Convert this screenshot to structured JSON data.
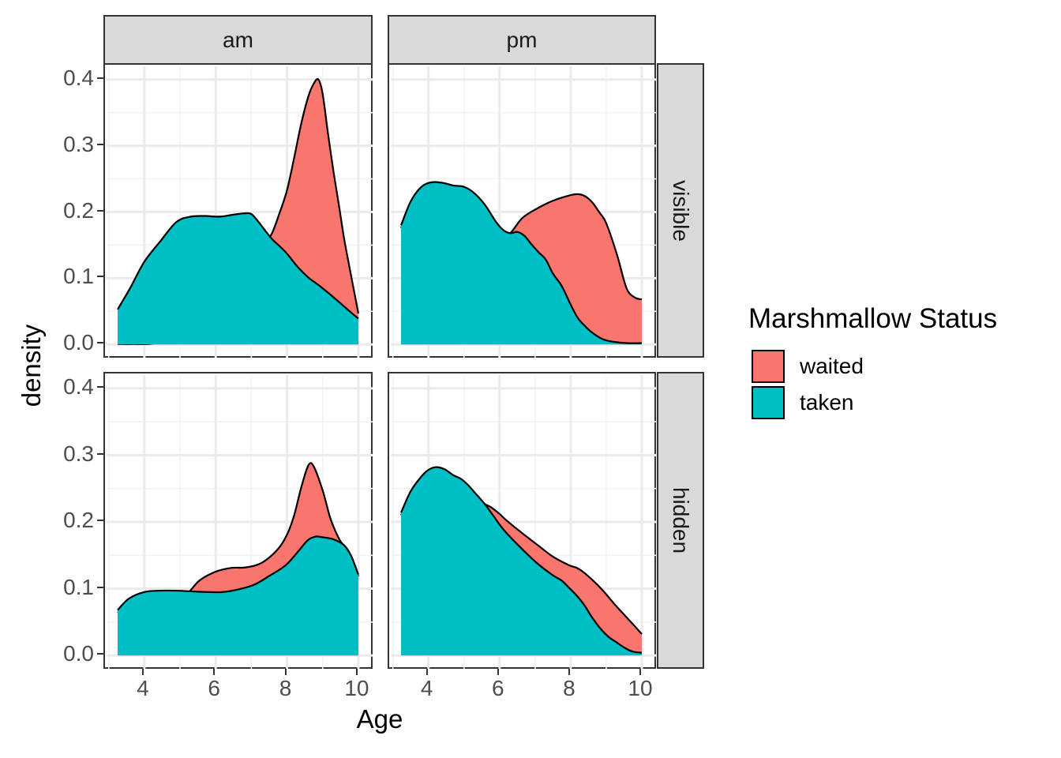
{
  "axes": {
    "x_title": "Age",
    "y_title": "density",
    "x_tick_labels": [
      "4",
      "6",
      "8",
      "10"
    ],
    "y_tick_labels": [
      "0.0",
      "0.1",
      "0.2",
      "0.3",
      "0.4"
    ]
  },
  "facets": {
    "col_labels": [
      "am",
      "pm"
    ],
    "row_labels": [
      "visible",
      "hidden"
    ],
    "col_1": "am",
    "col_2": "pm",
    "row_1": "visible",
    "row_2": "hidden"
  },
  "legend": {
    "title": "Marshmallow Status",
    "entries": [
      {
        "label": "waited",
        "color": "#F8766D"
      },
      {
        "label": "taken",
        "color": "#00BFC4"
      }
    ]
  },
  "colors": {
    "waited_fill": "#F8766D",
    "taken_fill": "#00BFC4",
    "curve_stroke": "#000000",
    "grid_major": "#ebebeb",
    "grid_minor": "#f3f3f3",
    "panel_border": "#333333",
    "strip_bg": "#d9d9d9",
    "tick_text": "#4d4d4d"
  },
  "chart_data": {
    "type": "area",
    "subtype": "faceted-density",
    "xlabel": "Age",
    "ylabel": "density",
    "x_ticks": [
      4,
      6,
      8,
      10
    ],
    "y_ticks": [
      0,
      0.1,
      0.2,
      0.3,
      0.4
    ],
    "x_minor": [
      3,
      5,
      7,
      9
    ],
    "y_minor": [
      0.05,
      0.15,
      0.25,
      0.35
    ],
    "x_range": [
      2.94,
      10.4
    ],
    "y_range": [
      -0.02,
      0.42
    ],
    "grid": "on",
    "legend_position": "right",
    "legend_title": "Marshmallow Status",
    "series_order": [
      "waited",
      "taken"
    ],
    "facet_cols": [
      "am",
      "pm"
    ],
    "facet_rows": [
      "visible",
      "hidden"
    ],
    "panels": {
      "am_visible": {
        "waited": [
          [
            3.25,
            0.0005
          ],
          [
            3.7,
            0.0005
          ],
          [
            4.2,
            0.001
          ],
          [
            4.6,
            0.008
          ],
          [
            5.0,
            0.028
          ],
          [
            5.5,
            0.06
          ],
          [
            6.0,
            0.092
          ],
          [
            6.5,
            0.122
          ],
          [
            7.0,
            0.147
          ],
          [
            7.3,
            0.156
          ],
          [
            7.55,
            0.165
          ],
          [
            7.8,
            0.2
          ],
          [
            8.0,
            0.233
          ],
          [
            8.2,
            0.282
          ],
          [
            8.4,
            0.334
          ],
          [
            8.6,
            0.375
          ],
          [
            8.75,
            0.394
          ],
          [
            8.88,
            0.4
          ],
          [
            9.0,
            0.378
          ],
          [
            9.15,
            0.318
          ],
          [
            9.3,
            0.262
          ],
          [
            9.45,
            0.212
          ],
          [
            9.6,
            0.16
          ],
          [
            9.75,
            0.117
          ],
          [
            9.9,
            0.075
          ],
          [
            10,
            0.047
          ]
        ],
        "taken": [
          [
            3.25,
            0.053
          ],
          [
            3.6,
            0.085
          ],
          [
            4.0,
            0.125
          ],
          [
            4.45,
            0.156
          ],
          [
            4.9,
            0.185
          ],
          [
            5.3,
            0.193
          ],
          [
            5.7,
            0.194
          ],
          [
            6.1,
            0.193
          ],
          [
            6.5,
            0.196
          ],
          [
            6.8,
            0.198
          ],
          [
            7.0,
            0.197
          ],
          [
            7.2,
            0.185
          ],
          [
            7.4,
            0.171
          ],
          [
            7.6,
            0.158
          ],
          [
            7.8,
            0.148
          ],
          [
            8.0,
            0.137
          ],
          [
            8.3,
            0.117
          ],
          [
            8.6,
            0.101
          ],
          [
            8.9,
            0.089
          ],
          [
            9.2,
            0.076
          ],
          [
            9.5,
            0.062
          ],
          [
            9.8,
            0.048
          ],
          [
            10,
            0.039
          ]
        ]
      },
      "pm_visible": {
        "waited": [
          [
            3.23,
            0.176
          ],
          [
            3.5,
            0.212
          ],
          [
            3.8,
            0.234
          ],
          [
            4.1,
            0.241
          ],
          [
            4.4,
            0.24
          ],
          [
            4.7,
            0.236
          ],
          [
            5.0,
            0.234
          ],
          [
            5.3,
            0.224
          ],
          [
            5.6,
            0.206
          ],
          [
            5.9,
            0.181
          ],
          [
            6.1,
            0.169
          ],
          [
            6.3,
            0.168
          ],
          [
            6.64,
            0.191
          ],
          [
            7.08,
            0.206
          ],
          [
            7.5,
            0.217
          ],
          [
            7.96,
            0.225
          ],
          [
            8.2,
            0.227
          ],
          [
            8.4,
            0.224
          ],
          [
            8.6,
            0.215
          ],
          [
            8.8,
            0.2
          ],
          [
            9.0,
            0.183
          ],
          [
            9.3,
            0.136
          ],
          [
            9.57,
            0.085
          ],
          [
            9.8,
            0.071
          ],
          [
            10,
            0.068
          ]
        ],
        "taken": [
          [
            3.23,
            0.18
          ],
          [
            3.5,
            0.216
          ],
          [
            3.8,
            0.238
          ],
          [
            4.1,
            0.245
          ],
          [
            4.4,
            0.244
          ],
          [
            4.7,
            0.24
          ],
          [
            5.0,
            0.238
          ],
          [
            5.3,
            0.228
          ],
          [
            5.6,
            0.21
          ],
          [
            5.9,
            0.185
          ],
          [
            6.1,
            0.173
          ],
          [
            6.3,
            0.168
          ],
          [
            6.5,
            0.17
          ],
          [
            6.7,
            0.164
          ],
          [
            6.9,
            0.151
          ],
          [
            7.1,
            0.139
          ],
          [
            7.3,
            0.128
          ],
          [
            7.5,
            0.107
          ],
          [
            7.75,
            0.088
          ],
          [
            8.0,
            0.06
          ],
          [
            8.2,
            0.04
          ],
          [
            8.4,
            0.028
          ],
          [
            8.6,
            0.018
          ],
          [
            8.9,
            0.008
          ],
          [
            9.2,
            0.004
          ],
          [
            9.6,
            0.002
          ],
          [
            10,
            0.002
          ]
        ]
      },
      "am_hidden": {
        "waited": [
          [
            3.25,
            0.064
          ],
          [
            3.56,
            0.081
          ],
          [
            4.0,
            0.091
          ],
          [
            4.45,
            0.093
          ],
          [
            4.9,
            0.093
          ],
          [
            5.2,
            0.093
          ],
          [
            5.54,
            0.112
          ],
          [
            5.98,
            0.125
          ],
          [
            6.42,
            0.131
          ],
          [
            6.86,
            0.132
          ],
          [
            7.3,
            0.139
          ],
          [
            7.74,
            0.159
          ],
          [
            8.0,
            0.181
          ],
          [
            8.2,
            0.21
          ],
          [
            8.4,
            0.252
          ],
          [
            8.6,
            0.285
          ],
          [
            8.75,
            0.283
          ],
          [
            9.0,
            0.247
          ],
          [
            9.2,
            0.208
          ],
          [
            9.35,
            0.187
          ],
          [
            9.5,
            0.171
          ],
          [
            9.65,
            0.161
          ],
          [
            9.8,
            0.146
          ],
          [
            10,
            0.118
          ]
        ],
        "taken": [
          [
            3.25,
            0.068
          ],
          [
            3.56,
            0.085
          ],
          [
            4.0,
            0.095
          ],
          [
            4.45,
            0.097
          ],
          [
            4.9,
            0.097
          ],
          [
            5.3,
            0.096
          ],
          [
            5.76,
            0.095
          ],
          [
            6.2,
            0.095
          ],
          [
            6.64,
            0.099
          ],
          [
            7.08,
            0.106
          ],
          [
            7.5,
            0.119
          ],
          [
            7.96,
            0.135
          ],
          [
            8.3,
            0.155
          ],
          [
            8.57,
            0.172
          ],
          [
            8.8,
            0.178
          ],
          [
            9.0,
            0.177
          ],
          [
            9.3,
            0.174
          ],
          [
            9.6,
            0.165
          ],
          [
            9.8,
            0.149
          ],
          [
            10,
            0.121
          ]
        ]
      },
      "pm_hidden": {
        "waited": [
          [
            3.23,
            0.21
          ],
          [
            3.5,
            0.242
          ],
          [
            3.8,
            0.264
          ],
          [
            4.0,
            0.274
          ],
          [
            4.2,
            0.278
          ],
          [
            4.45,
            0.275
          ],
          [
            4.7,
            0.266
          ],
          [
            4.9,
            0.261
          ],
          [
            5.1,
            0.252
          ],
          [
            5.3,
            0.24
          ],
          [
            5.55,
            0.228
          ],
          [
            5.76,
            0.222
          ],
          [
            6.0,
            0.212
          ],
          [
            6.2,
            0.202
          ],
          [
            6.64,
            0.183
          ],
          [
            7.08,
            0.165
          ],
          [
            7.5,
            0.148
          ],
          [
            7.96,
            0.135
          ],
          [
            8.18,
            0.131
          ],
          [
            8.4,
            0.123
          ],
          [
            8.84,
            0.101
          ],
          [
            9.28,
            0.074
          ],
          [
            9.73,
            0.048
          ],
          [
            10,
            0.032
          ]
        ],
        "taken": [
          [
            3.23,
            0.214
          ],
          [
            3.5,
            0.246
          ],
          [
            3.8,
            0.268
          ],
          [
            4.0,
            0.278
          ],
          [
            4.2,
            0.282
          ],
          [
            4.45,
            0.279
          ],
          [
            4.7,
            0.27
          ],
          [
            4.9,
            0.265
          ],
          [
            5.1,
            0.256
          ],
          [
            5.3,
            0.244
          ],
          [
            5.55,
            0.229
          ],
          [
            5.76,
            0.214
          ],
          [
            6.0,
            0.196
          ],
          [
            6.2,
            0.183
          ],
          [
            6.64,
            0.159
          ],
          [
            7.08,
            0.137
          ],
          [
            7.5,
            0.12
          ],
          [
            7.75,
            0.112
          ],
          [
            7.96,
            0.101
          ],
          [
            8.18,
            0.089
          ],
          [
            8.4,
            0.074
          ],
          [
            8.6,
            0.057
          ],
          [
            8.84,
            0.04
          ],
          [
            9.06,
            0.028
          ],
          [
            9.28,
            0.02
          ],
          [
            9.5,
            0.012
          ],
          [
            9.73,
            0.006
          ],
          [
            10,
            0.004
          ]
        ]
      }
    }
  }
}
